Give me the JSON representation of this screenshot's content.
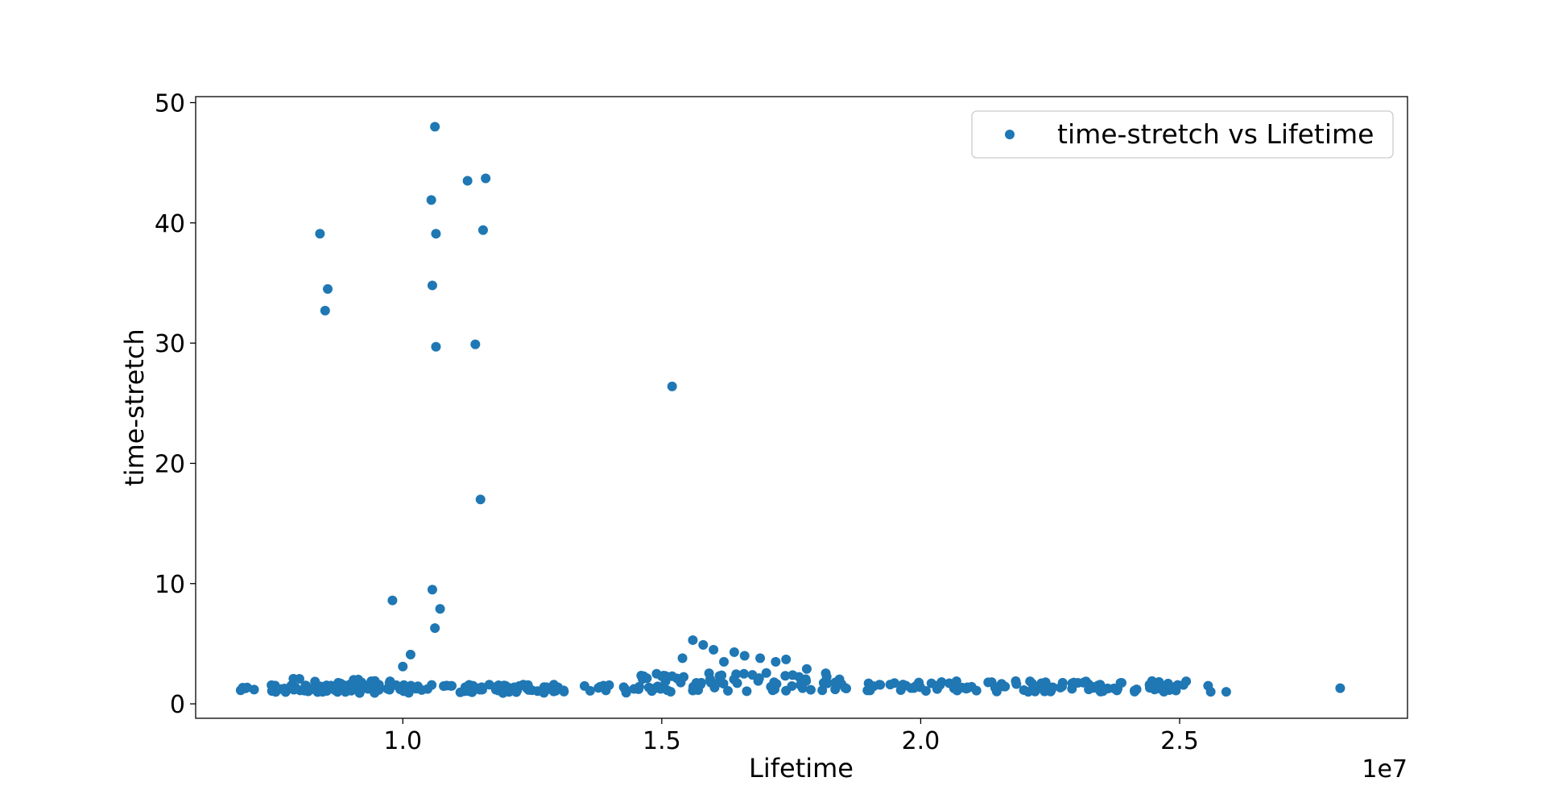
{
  "chart_data": {
    "type": "scatter",
    "title": "",
    "xlabel": "Lifetime",
    "ylabel": "time-stretch",
    "x_offset_label": "1e7",
    "xlim": [
      6000000.0,
      29400000.0
    ],
    "ylim": [
      -1.2,
      50.5
    ],
    "x_ticks": [
      10000000.0,
      15000000.0,
      20000000.0,
      25000000.0
    ],
    "x_tick_labels": [
      "1.0",
      "1.5",
      "2.0",
      "2.5"
    ],
    "y_ticks": [
      0,
      10,
      20,
      30,
      40,
      50
    ],
    "y_tick_labels": [
      "0",
      "10",
      "20",
      "30",
      "40",
      "50"
    ],
    "grid": false,
    "legend_position": "top-right",
    "series": [
      {
        "name": "time-stretch vs Lifetime",
        "color": "#1f77b4",
        "points": [
          [
            8400000.0,
            39.1
          ],
          [
            8500000.0,
            32.7
          ],
          [
            8550000.0,
            34.5
          ],
          [
            9800000.0,
            8.6
          ],
          [
            10000000.0,
            3.1
          ],
          [
            10150000.0,
            4.1
          ],
          [
            10550000.0,
            41.9
          ],
          [
            10570000.0,
            34.8
          ],
          [
            10570000.0,
            9.5
          ],
          [
            10620000.0,
            48.0
          ],
          [
            10640000.0,
            39.1
          ],
          [
            10640000.0,
            29.7
          ],
          [
            10620000.0,
            6.3
          ],
          [
            10720000.0,
            7.9
          ],
          [
            11250000.0,
            43.5
          ],
          [
            11400000.0,
            29.9
          ],
          [
            11500000.0,
            17.0
          ],
          [
            11550000.0,
            39.4
          ],
          [
            11600000.0,
            43.7
          ],
          [
            15200000.0,
            26.4
          ],
          [
            14650000.0,
            2.3
          ],
          [
            14900000.0,
            2.5
          ],
          [
            15000000.0,
            2.3
          ],
          [
            15200000.0,
            2.3
          ],
          [
            15400000.0,
            3.8
          ],
          [
            15600000.0,
            5.3
          ],
          [
            15800000.0,
            4.9
          ],
          [
            16000000.0,
            4.5
          ],
          [
            16200000.0,
            3.5
          ],
          [
            16400000.0,
            4.3
          ],
          [
            16600000.0,
            4.0
          ],
          [
            16900000.0,
            3.8
          ],
          [
            17200000.0,
            3.5
          ],
          [
            17400000.0,
            3.7
          ],
          [
            17800000.0,
            2.9
          ],
          [
            25550000.0,
            1.5
          ],
          [
            25600000.0,
            1.0
          ],
          [
            25900000.0,
            1.0
          ],
          [
            28100000.0,
            1.3
          ]
        ],
        "dense_bands": [
          {
            "x_range": [
              6800000.0,
              14500000.0
            ],
            "y_range": [
              0.9,
              1.6
            ]
          },
          {
            "x_range": [
              7800000.0,
              9800000.0
            ],
            "y_range": [
              1.0,
              2.1
            ]
          },
          {
            "x_range": [
              14500000.0,
              18500000.0
            ],
            "y_range": [
              1.0,
              2.6
            ]
          },
          {
            "x_range": [
              18500000.0,
              25200000.0
            ],
            "y_range": [
              1.0,
              1.9
            ]
          }
        ]
      }
    ]
  }
}
